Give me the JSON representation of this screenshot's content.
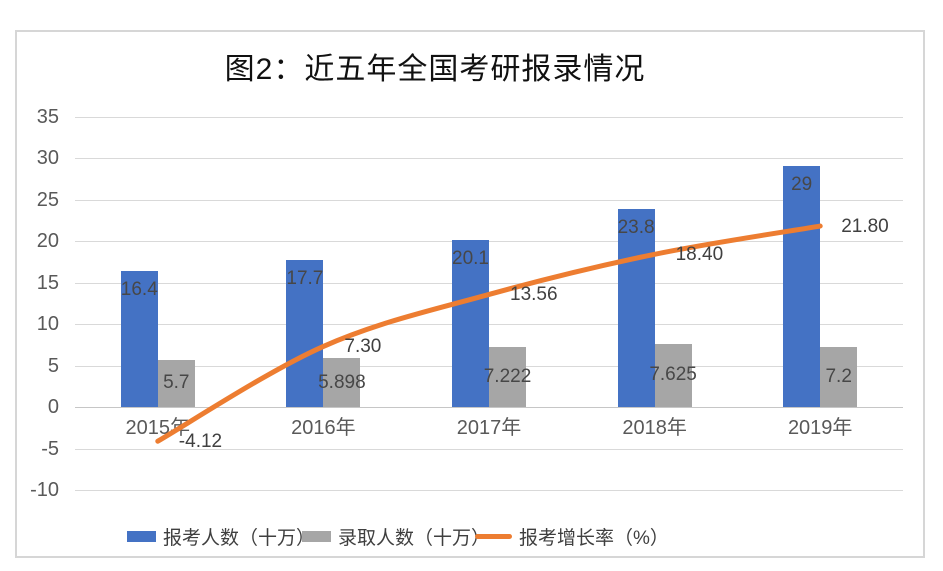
{
  "title": "图2：近五年全国考研报录情况",
  "colors": {
    "bar_primary": "#4472C4",
    "bar_secondary": "#A6A6A6",
    "line": "#ED7D31",
    "gridline": "#D9D9D9",
    "axis_text": "#595959",
    "label_text": "#474747",
    "title_text": "#111111"
  },
  "chart_data": {
    "type": "combo-bar-line",
    "title": "图2：近五年全国考研报录情况",
    "categories": [
      "2015年",
      "2016年",
      "2017年",
      "2018年",
      "2019年"
    ],
    "series": [
      {
        "name": "报考人数（十万）",
        "type": "bar",
        "color": "#4472C4",
        "values": [
          16.4,
          17.7,
          20.1,
          23.8,
          29
        ],
        "labels": [
          "16.4",
          "17.7",
          "20.1",
          "23.8",
          "29"
        ]
      },
      {
        "name": "录取人数（十万）",
        "type": "bar",
        "color": "#A6A6A6",
        "values": [
          5.7,
          5.898,
          7.222,
          7.625,
          7.2
        ],
        "labels": [
          "5.7",
          "5.898",
          "7.222",
          "7.625",
          "7.2"
        ]
      },
      {
        "name": "报考增长率（%）",
        "type": "line",
        "color": "#ED7D31",
        "values": [
          -4.12,
          7.3,
          13.56,
          18.4,
          21.8
        ],
        "labels": [
          "-4.12",
          "7.30",
          "13.56",
          "18.40",
          "21.80"
        ]
      }
    ],
    "xlabel": "",
    "ylabel": "",
    "y_ticks": [
      35,
      30,
      25,
      20,
      15,
      10,
      5,
      0,
      -5,
      -10
    ],
    "ylim": [
      -10,
      35
    ],
    "grid": true,
    "smoothed_line": true,
    "legend_position": "bottom"
  }
}
